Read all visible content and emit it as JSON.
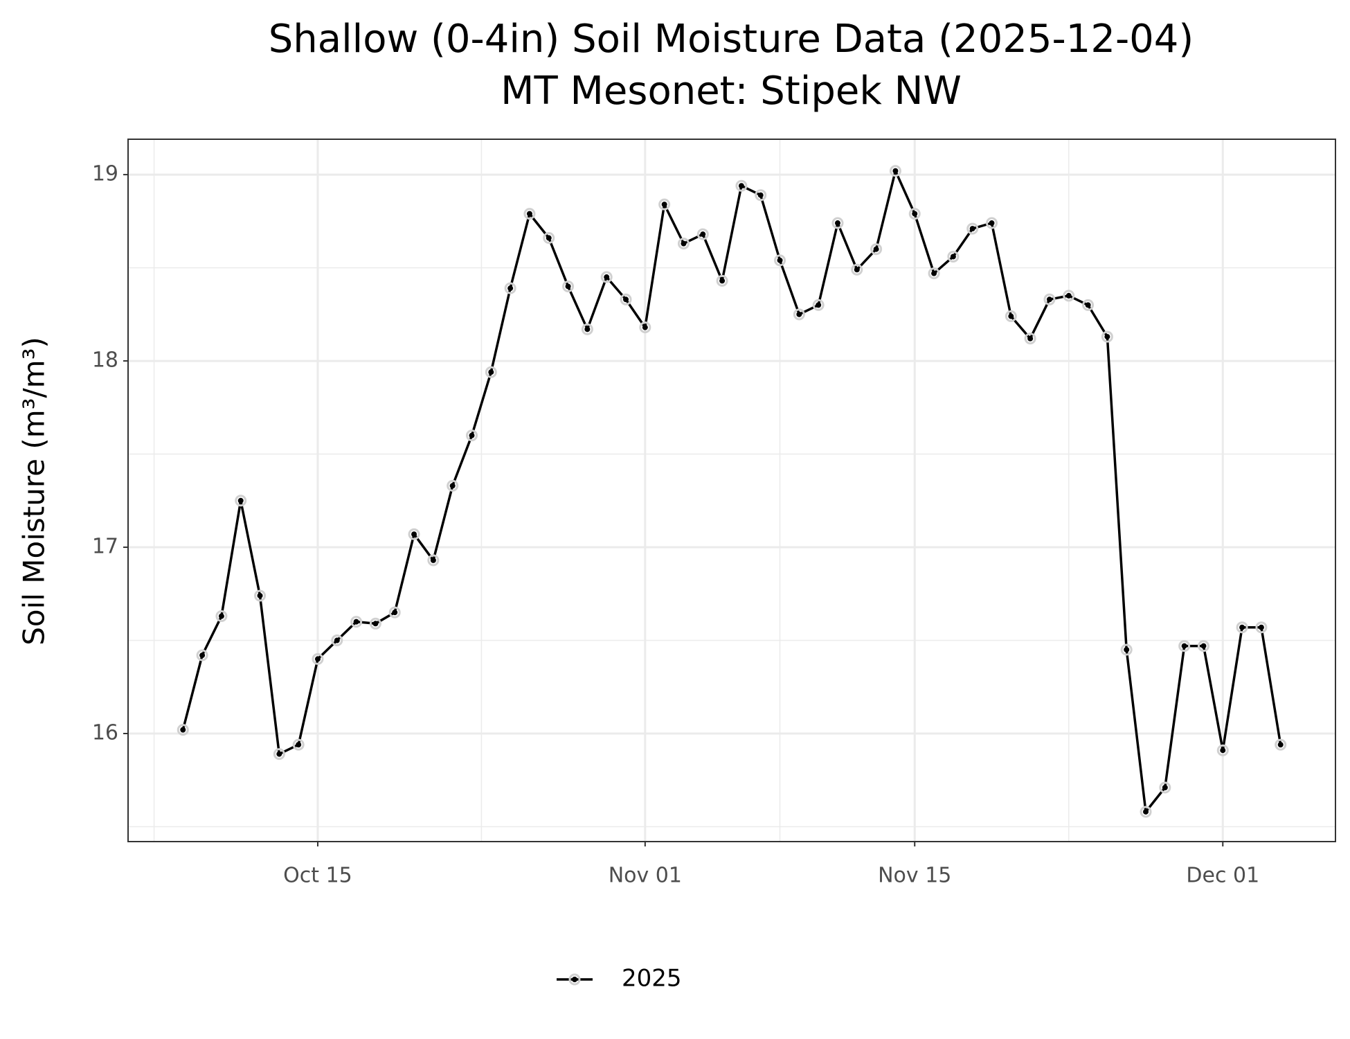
{
  "chart_data": {
    "type": "line",
    "title": "Shallow (0-4in) Soil Moisture Data (2025-12-04)",
    "subtitle": "MT Mesonet: Stipek NW",
    "y_label": "Soil Moisture (m³/m³)",
    "x": [
      "Oct 08",
      "Oct 09",
      "Oct 10",
      "Oct 11",
      "Oct 12",
      "Oct 13",
      "Oct 14",
      "Oct 15",
      "Oct 16",
      "Oct 17",
      "Oct 18",
      "Oct 19",
      "Oct 20",
      "Oct 21",
      "Oct 22",
      "Oct 23",
      "Oct 24",
      "Oct 25",
      "Oct 26",
      "Oct 27",
      "Oct 28",
      "Oct 29",
      "Oct 30",
      "Oct 31",
      "Nov 01",
      "Nov 02",
      "Nov 03",
      "Nov 04",
      "Nov 05",
      "Nov 06",
      "Nov 07",
      "Nov 08",
      "Nov 09",
      "Nov 10",
      "Nov 11",
      "Nov 12",
      "Nov 13",
      "Nov 14",
      "Nov 15",
      "Nov 16",
      "Nov 17",
      "Nov 18",
      "Nov 19",
      "Nov 20",
      "Nov 21",
      "Nov 22",
      "Nov 23",
      "Nov 24",
      "Nov 25",
      "Nov 26",
      "Nov 27",
      "Nov 28",
      "Nov 29",
      "Nov 30",
      "Dec 01",
      "Dec 02",
      "Dec 03",
      "Dec 04"
    ],
    "series": [
      {
        "name": "2025",
        "color": "#000000",
        "values": [
          16.02,
          16.42,
          16.63,
          17.25,
          16.74,
          15.89,
          15.94,
          16.4,
          16.5,
          16.6,
          16.59,
          16.65,
          17.07,
          16.93,
          17.33,
          17.6,
          17.94,
          18.39,
          18.79,
          18.66,
          18.4,
          18.17,
          18.45,
          18.33,
          18.18,
          18.84,
          18.63,
          18.68,
          18.43,
          18.94,
          18.89,
          18.54,
          18.25,
          18.3,
          18.74,
          18.49,
          18.6,
          19.02,
          18.79,
          18.47,
          18.56,
          18.71,
          18.74,
          18.24,
          18.12,
          18.33,
          18.35,
          18.3,
          18.13,
          16.45,
          15.58,
          15.71,
          16.47,
          16.47,
          15.91,
          16.57,
          16.57,
          15.94
        ]
      }
    ],
    "xticks": [
      "Oct 15",
      "Nov 01",
      "Nov 15",
      "Dec 01"
    ],
    "ylim": [
      15.42,
      19.19
    ],
    "yticks": [
      16,
      17,
      18,
      19
    ],
    "grid": true,
    "legend": "bottom"
  }
}
